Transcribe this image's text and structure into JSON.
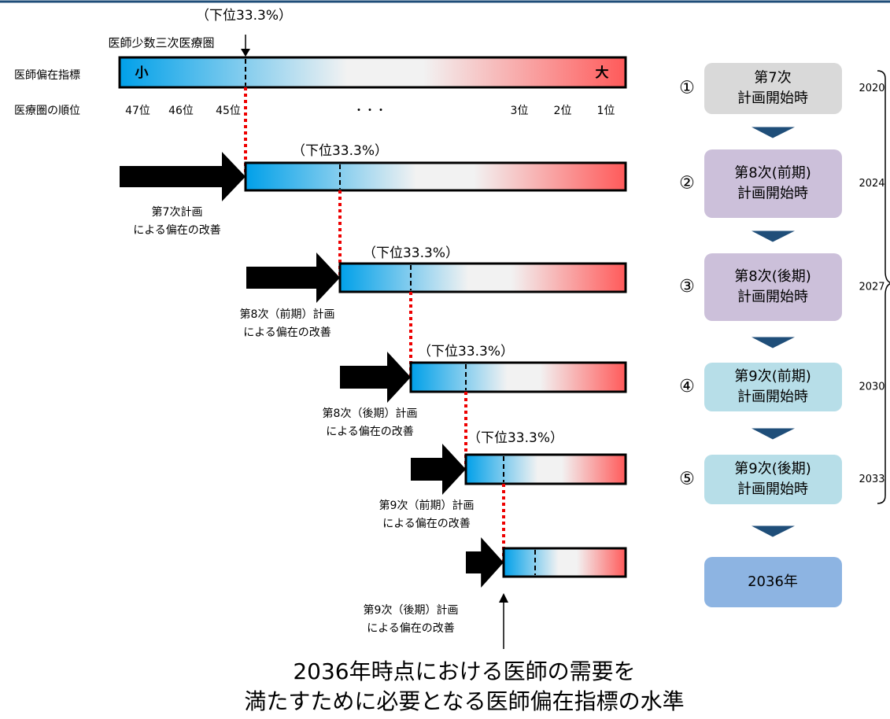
{
  "top_label": "（下位33.3%）",
  "top_region": "医師少数三次医療圏",
  "index_label": "医師偏在指標",
  "rank_label": "医療圏の順位",
  "scale_low": "小",
  "scale_high": "大",
  "ranks": [
    "47位",
    "46位",
    "45位",
    "・・・",
    "3位",
    "2位",
    "1位"
  ],
  "stages": [
    {
      "label": "（下位33.3%）",
      "caption": [
        "第7次計画",
        "による偏在の改善"
      ]
    },
    {
      "label": "（下位33.3%）",
      "caption": [
        "第8次（前期）計画",
        "による偏在の改善"
      ]
    },
    {
      "label": "（下位33.3%）",
      "caption": [
        "第8次（後期）計画",
        "による偏在の改善"
      ]
    },
    {
      "label": "（下位33.3%）",
      "caption": [
        "第9次（前期）計画",
        "による偏在の改善"
      ]
    },
    {
      "caption": [
        "第9次（後期）計画",
        "による偏在の改善"
      ]
    }
  ],
  "steps": [
    {
      "number": "①",
      "lines": [
        "第7次",
        "計画開始時"
      ],
      "year": "2020"
    },
    {
      "number": "②",
      "lines": [
        "第8次(前期)",
        "計画開始時"
      ],
      "year": "2024"
    },
    {
      "number": "③",
      "lines": [
        "第8次(後期)",
        "計画開始時"
      ],
      "year": "2027"
    },
    {
      "number": "④",
      "lines": [
        "第9次(前期)",
        "計画開始時"
      ],
      "year": "2030"
    },
    {
      "number": "⑤",
      "lines": [
        "第9次(後期)",
        "計画開始時"
      ],
      "year": "2033"
    }
  ],
  "final": "2036年",
  "footer": [
    "2036年時点における医師の需要を",
    "満たすために必要となる医師偏在指標の水準"
  ]
}
